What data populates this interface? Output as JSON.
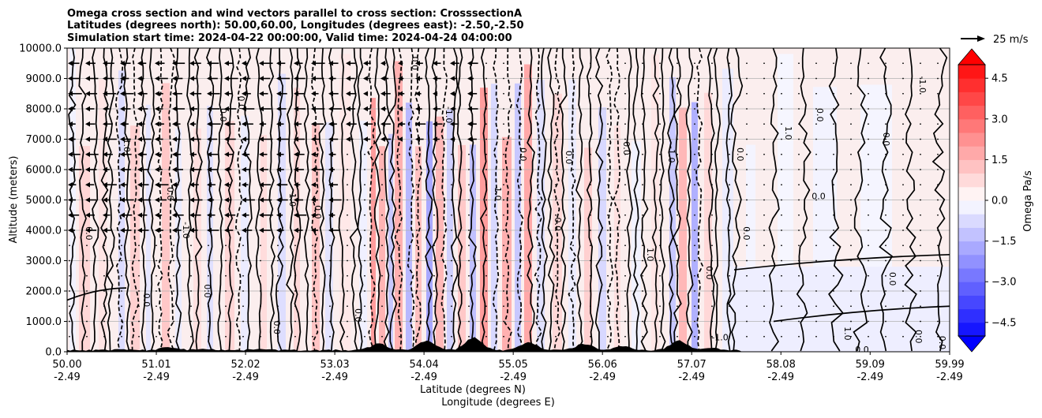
{
  "chart_data": {
    "type": "heatmap",
    "title_lines": [
      "Omega cross section and wind vectors parallel to cross section: CrosssectionA",
      "Latitudes (degrees north): 50.00,60.00, Longitudes (degrees east): -2.50,-2.50",
      "Simulation start time: 2024-04-22 00:00:00, Valid time: 2024-04-24 04:00:00"
    ],
    "ylabel": "Altitude (meters)",
    "xlabel_lines": [
      "Latitude (degrees N)",
      "Longitude (degrees E)"
    ],
    "y_ticks": [
      "0.0",
      "1000.0",
      "2000.0",
      "3000.0",
      "4000.0",
      "5000.0",
      "6000.0",
      "7000.0",
      "8000.0",
      "9000.0",
      "10000.0"
    ],
    "ylim": [
      0,
      10000
    ],
    "x_ticks": [
      {
        "lat": "50.00",
        "lon": "-2.49"
      },
      {
        "lat": "51.01",
        "lon": "-2.49"
      },
      {
        "lat": "52.02",
        "lon": "-2.49"
      },
      {
        "lat": "53.03",
        "lon": "-2.49"
      },
      {
        "lat": "54.04",
        "lon": "-2.49"
      },
      {
        "lat": "55.05",
        "lon": "-2.49"
      },
      {
        "lat": "56.06",
        "lon": "-2.49"
      },
      {
        "lat": "57.07",
        "lon": "-2.49"
      },
      {
        "lat": "58.08",
        "lon": "-2.49"
      },
      {
        "lat": "59.09",
        "lon": "-2.49"
      },
      {
        "lat": "59.99",
        "lon": "-2.49"
      }
    ],
    "xlim": [
      50.0,
      59.99
    ],
    "grid": true,
    "colorbar": {
      "label": "Omega Pa/s",
      "ticks": [
        "4.5",
        "3.0",
        "1.5",
        "0.0",
        "−1.5",
        "−3.0",
        "−4.5"
      ],
      "range": [
        -5,
        5
      ],
      "extend": "both",
      "cmap": "bwr"
    },
    "quiver_key": "25 m/s",
    "contour_labels": [
      "0.0",
      "1.0",
      "-1.0"
    ],
    "colors": {
      "positive": "#ff0000",
      "negative": "#0000ff",
      "neutral": "#ffffff",
      "terrain": "#000000"
    }
  }
}
